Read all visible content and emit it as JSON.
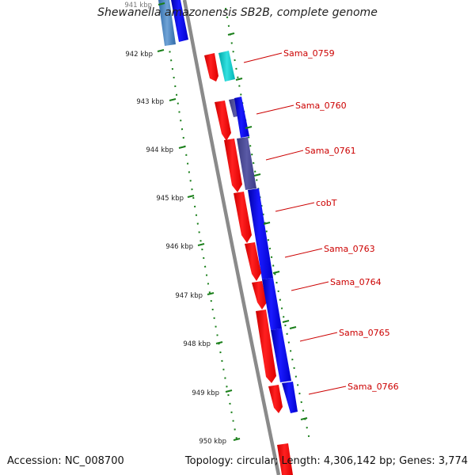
{
  "title": "Shewanella amazonensis SB2B, complete genome",
  "footer": {
    "accession": "Accession: NC_008700",
    "stats": "Topology: circular; Length: 4,306,142 bp; Genes: 3,774"
  },
  "colors": {
    "forward_gene": "#ff0000",
    "reverse_gene": "#0000ff",
    "overlap_gene": "#4b4b96",
    "steelblue_gene": "#3f7fbf",
    "cyan_gene": "#00cccc",
    "backbone": "#8a8a8a",
    "ruler": "#1a7f1a",
    "label": "#cc0000"
  },
  "ruler": {
    "unit": "kbp",
    "ticks": [
      "941 kbp",
      "942 kbp",
      "943 kbp",
      "944 kbp",
      "945 kbp",
      "946 kbp",
      "947 kbp",
      "948 kbp",
      "949 kbp",
      "950 kbp"
    ]
  },
  "genes": [
    {
      "label": "Sama_0759",
      "color": "red"
    },
    {
      "label": "Sama_0760",
      "color": "red"
    },
    {
      "label": "Sama_0761",
      "color": "red"
    },
    {
      "label": "cobT",
      "color": "blue"
    },
    {
      "label": "Sama_0763",
      "color": "red"
    },
    {
      "label": "Sama_0764",
      "color": "red"
    },
    {
      "label": "Sama_0765",
      "color": "red"
    },
    {
      "label": "Sama_0766",
      "color": "red"
    }
  ]
}
